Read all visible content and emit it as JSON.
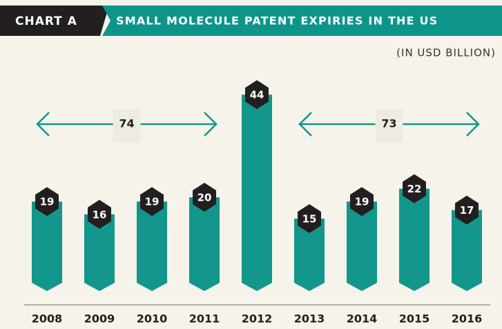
{
  "chart_data": {
    "type": "bar",
    "tag": "CHART A",
    "title": "SMALL MOLECULE PATENT EXPIRIES IN THE US",
    "subtitle": "(IN USD BILLION)",
    "categories": [
      "2008",
      "2009",
      "2010",
      "2011",
      "2012",
      "2013",
      "2014",
      "2015",
      "2016"
    ],
    "values": [
      19,
      16,
      19,
      20,
      44,
      15,
      19,
      22,
      17
    ],
    "color": "#13968b",
    "label_color": "#231f20",
    "annotations": [
      {
        "value": 74,
        "span": [
          "2008",
          "2011"
        ]
      },
      {
        "value": 73,
        "span": [
          "2013",
          "2016"
        ]
      }
    ]
  }
}
